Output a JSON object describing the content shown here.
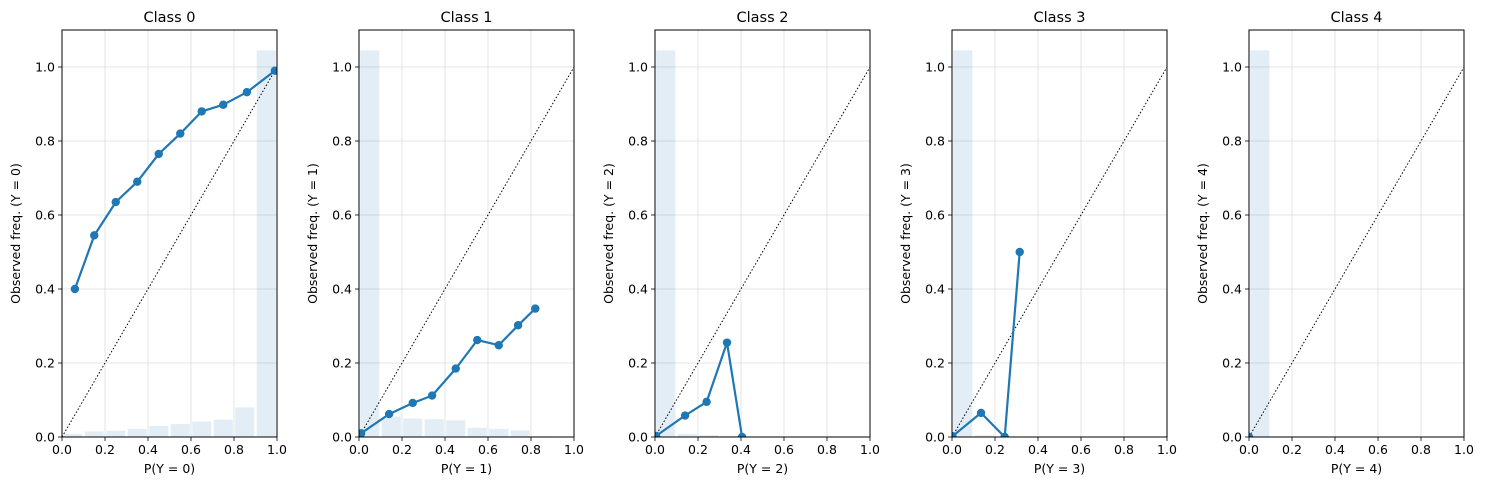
{
  "colors": {
    "line": "#1f77b4",
    "hist": "#1f77b4",
    "grid": "#dddddd",
    "diagonal": "#000000"
  },
  "chart_data": [
    {
      "type": "line",
      "title": "Class 0",
      "xlabel": "P(Y = 0)",
      "ylabel": "Observed freq. (Y = 0)",
      "xlim": [
        0,
        1
      ],
      "ylim": [
        0,
        1.1
      ],
      "xticks": [
        "0.0",
        "0.2",
        "0.4",
        "0.6",
        "0.8",
        "1.0"
      ],
      "yticks": [
        "0.0",
        "0.2",
        "0.4",
        "0.6",
        "0.8",
        "1.0"
      ],
      "grid": true,
      "reference_line": "diagonal y = x",
      "series": [
        {
          "x": [
            0.06,
            0.15,
            0.25,
            0.35,
            0.45,
            0.55,
            0.65,
            0.75,
            0.86,
            0.99
          ],
          "y": [
            0.4,
            0.545,
            0.635,
            0.69,
            0.765,
            0.82,
            0.88,
            0.898,
            0.932,
            0.99
          ]
        }
      ],
      "histogram": {
        "bin_edges": [
          0,
          0.1,
          0.2,
          0.3,
          0.4,
          0.5,
          0.6,
          0.7,
          0.8,
          0.9,
          1.0
        ],
        "heights": [
          0.008,
          0.015,
          0.017,
          0.022,
          0.03,
          0.035,
          0.042,
          0.047,
          0.08,
          1.045
        ]
      }
    },
    {
      "type": "line",
      "title": "Class 1",
      "xlabel": "P(Y = 1)",
      "ylabel": "Observed freq. (Y = 1)",
      "xlim": [
        0,
        1
      ],
      "ylim": [
        0,
        1.1
      ],
      "xticks": [
        "0.0",
        "0.2",
        "0.4",
        "0.6",
        "0.8",
        "1.0"
      ],
      "yticks": [
        "0.0",
        "0.2",
        "0.4",
        "0.6",
        "0.8",
        "1.0"
      ],
      "grid": true,
      "reference_line": "diagonal y = x",
      "series": [
        {
          "x": [
            0.01,
            0.14,
            0.25,
            0.34,
            0.45,
            0.55,
            0.65,
            0.74,
            0.82
          ],
          "y": [
            0.01,
            0.062,
            0.092,
            0.112,
            0.185,
            0.262,
            0.248,
            0.302,
            0.347
          ]
        }
      ],
      "histogram": {
        "bin_edges": [
          0,
          0.1,
          0.2,
          0.3,
          0.4,
          0.5,
          0.6,
          0.7,
          0.8,
          0.9,
          1.0
        ],
        "heights": [
          1.045,
          0.055,
          0.05,
          0.048,
          0.045,
          0.025,
          0.022,
          0.018,
          0.002,
          0.0
        ]
      }
    },
    {
      "type": "line",
      "title": "Class 2",
      "xlabel": "P(Y = 2)",
      "ylabel": "Observed freq. (Y = 2)",
      "xlim": [
        0,
        1
      ],
      "ylim": [
        0,
        1.1
      ],
      "xticks": [
        "0.0",
        "0.2",
        "0.4",
        "0.6",
        "0.8",
        "1.0"
      ],
      "yticks": [
        "0.0",
        "0.2",
        "0.4",
        "0.6",
        "0.8",
        "1.0"
      ],
      "grid": true,
      "reference_line": "diagonal y = x",
      "series": [
        {
          "x": [
            0.005,
            0.14,
            0.24,
            0.335,
            0.405
          ],
          "y": [
            0.003,
            0.058,
            0.095,
            0.255,
            0.0
          ]
        }
      ],
      "histogram": {
        "bin_edges": [
          0,
          0.1,
          0.2,
          0.3,
          0.4,
          0.5,
          0.6,
          0.7,
          0.8,
          0.9,
          1.0
        ],
        "heights": [
          1.045,
          0.008,
          0.005,
          0.003,
          0.001,
          0,
          0,
          0,
          0,
          0
        ]
      }
    },
    {
      "type": "line",
      "title": "Class 3",
      "xlabel": "P(Y = 3)",
      "ylabel": "Observed freq. (Y = 3)",
      "xlim": [
        0,
        1
      ],
      "ylim": [
        0,
        1.1
      ],
      "xticks": [
        "0.0",
        "0.2",
        "0.4",
        "0.6",
        "0.8",
        "1.0"
      ],
      "yticks": [
        "0.0",
        "0.2",
        "0.4",
        "0.6",
        "0.8",
        "1.0"
      ],
      "grid": true,
      "reference_line": "diagonal y = x",
      "series": [
        {
          "x": [
            0.002,
            0.135,
            0.245,
            0.315
          ],
          "y": [
            0.002,
            0.065,
            0.0,
            0.5
          ]
        }
      ],
      "histogram": {
        "bin_edges": [
          0,
          0.1,
          0.2,
          0.3,
          0.4,
          0.5,
          0.6,
          0.7,
          0.8,
          0.9,
          1.0
        ],
        "heights": [
          1.045,
          0.004,
          0.002,
          0.001,
          0,
          0,
          0,
          0,
          0,
          0
        ]
      }
    },
    {
      "type": "line",
      "title": "Class 4",
      "xlabel": "P(Y = 4)",
      "ylabel": "Observed freq. (Y = 4)",
      "xlim": [
        0,
        1
      ],
      "ylim": [
        0,
        1.1
      ],
      "xticks": [
        "0.0",
        "0.2",
        "0.4",
        "0.6",
        "0.8",
        "1.0"
      ],
      "yticks": [
        "0.0",
        "0.2",
        "0.4",
        "0.6",
        "0.8",
        "1.0"
      ],
      "grid": true,
      "reference_line": "diagonal y = x",
      "series": [
        {
          "x": [
            0.0
          ],
          "y": [
            0.0
          ]
        }
      ],
      "histogram": {
        "bin_edges": [
          0,
          0.1,
          0.2,
          0.3,
          0.4,
          0.5,
          0.6,
          0.7,
          0.8,
          0.9,
          1.0
        ],
        "heights": [
          1.045,
          0,
          0,
          0,
          0,
          0,
          0,
          0,
          0,
          0
        ]
      }
    }
  ]
}
